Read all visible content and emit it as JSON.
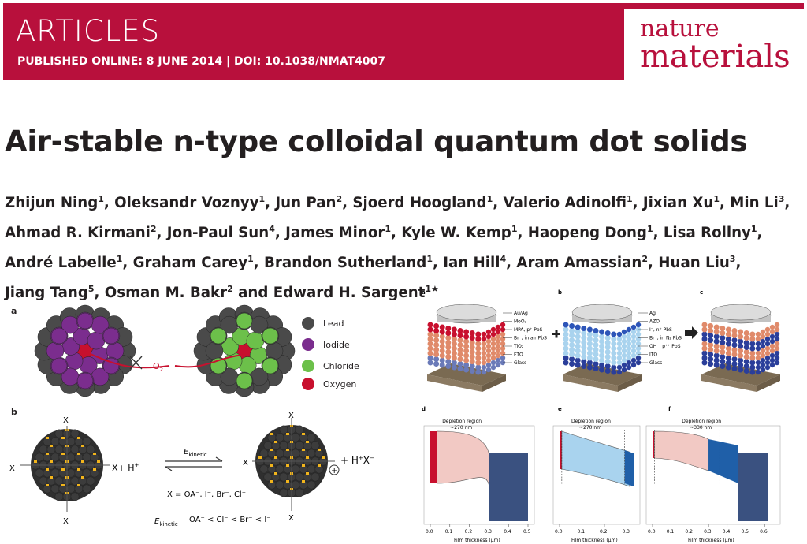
{
  "header": {
    "section": "ARTICLES",
    "published": "PUBLISHED ONLINE: 8 JUNE 2014 | DOI: 10.1038/NMAT4007",
    "journal_line1": "nature",
    "journal_line2": "materials"
  },
  "title": "Air-stable n-type colloidal quantum dot solids",
  "authors": [
    {
      "name": "Zhijun Ning",
      "aff": "1"
    },
    {
      "name": "Oleksandr Voznyy",
      "aff": "1"
    },
    {
      "name": "Jun Pan",
      "aff": "2"
    },
    {
      "name": "Sjoerd Hoogland",
      "aff": "1"
    },
    {
      "name": "Valerio Adinolfi",
      "aff": "1"
    },
    {
      "name": "Jixian Xu",
      "aff": "1"
    },
    {
      "name": "Min Li",
      "aff": "3"
    },
    {
      "name": "Ahmad R. Kirmani",
      "aff": "2"
    },
    {
      "name": "Jon-Paul Sun",
      "aff": "4"
    },
    {
      "name": "James Minor",
      "aff": "1"
    },
    {
      "name": "Kyle W. Kemp",
      "aff": "1"
    },
    {
      "name": "Haopeng Dong",
      "aff": "1"
    },
    {
      "name": "Lisa Rollny",
      "aff": "1"
    },
    {
      "name": "André Labelle",
      "aff": "1"
    },
    {
      "name": "Graham Carey",
      "aff": "1"
    },
    {
      "name": "Brandon Sutherland",
      "aff": "1"
    },
    {
      "name": "Ian Hill",
      "aff": "4"
    },
    {
      "name": "Aram Amassian",
      "aff": "2"
    },
    {
      "name": "Huan Liu",
      "aff": "3"
    },
    {
      "name": "Jiang Tang",
      "aff": "5"
    },
    {
      "name": "Osman M. Bakr",
      "aff": "2"
    },
    {
      "name": "Edward H. Sargent",
      "aff": "1★"
    }
  ],
  "author_conjunction": "and",
  "figure1": {
    "label_a": "a",
    "label_b": "b",
    "legend": [
      {
        "label": "Lead",
        "color": "#4a4a4a"
      },
      {
        "label": "Iodide",
        "color": "#7b2d8e"
      },
      {
        "label": "Chloride",
        "color": "#6cc04a"
      },
      {
        "label": "Oxygen",
        "color": "#c8102e"
      }
    ],
    "o2_label": "O",
    "o2_sub": "2",
    "x_label": "X",
    "hplus": "+ H",
    "hplus_sup": "+",
    "hx": "+ H",
    "hx_sup": "+",
    "hx_tail": "X",
    "hx_tail_sup": "−",
    "ekinetic": "E",
    "ekinetic_sub": "kinetic",
    "x_equals": "X = OA⁻, I⁻, Br⁻, Cl⁻",
    "ekinetic_order": "OA⁻ < Cl⁻ < Br⁻ < I⁻",
    "plus_circle": "+"
  },
  "figure2": {
    "labels": [
      "a",
      "b",
      "c",
      "d",
      "e",
      "f"
    ],
    "stack_a": [
      "Au/Ag",
      "MoO₃",
      "MPA, p⁺ PbS",
      "Br⁻, in air PbS",
      "TiO₂",
      "FTO",
      "Glass"
    ],
    "stack_b": [
      "Ag",
      "AZO",
      "I⁻, n⁺ PbS",
      "Br⁻, in N₂ PbS",
      "OH⁻, p⁺⁺ PbS",
      "ITO",
      "Glass"
    ],
    "depletion_d": [
      "Depletion region",
      "~270 nm"
    ],
    "depletion_e": [
      "Depletion region",
      "~270 nm"
    ],
    "depletion_f": [
      "Depletion region",
      "~330 nm"
    ],
    "xlabel": "Film thickness (μm)",
    "ticks_d": [
      "0.0",
      "0.1",
      "0.2",
      "0.3",
      "0.4",
      "0.5"
    ],
    "ticks_e": [
      "0.0",
      "0.1",
      "0.2",
      "0.3"
    ],
    "ticks_f": [
      "0.0",
      "0.1",
      "0.2",
      "0.3",
      "0.4",
      "0.5",
      "0.6"
    ],
    "colors": {
      "red": "#c8102e",
      "pink": "#f2c9c4",
      "lightblue": "#a9d3ee",
      "blue": "#1f5fa8",
      "navy": "#3a5180"
    }
  }
}
